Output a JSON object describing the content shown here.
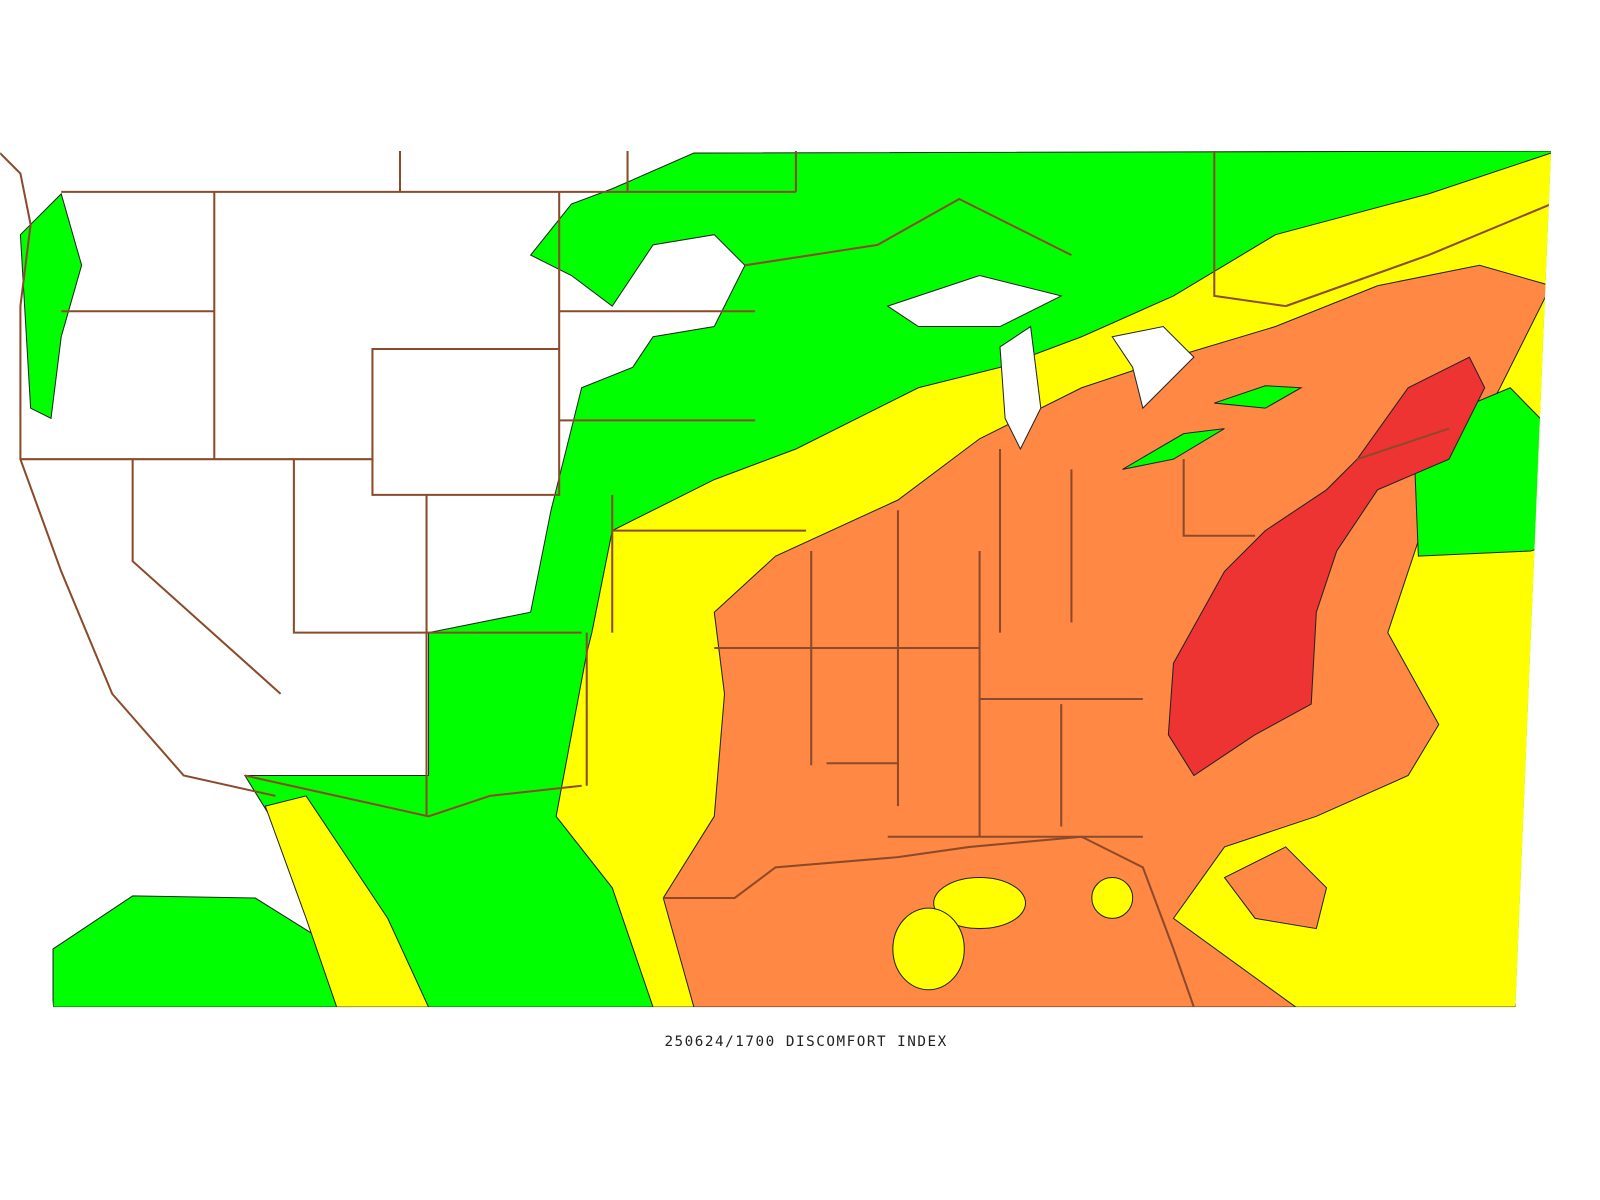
{
  "caption": "250624/1700 DISCOMFORT INDEX"
}
